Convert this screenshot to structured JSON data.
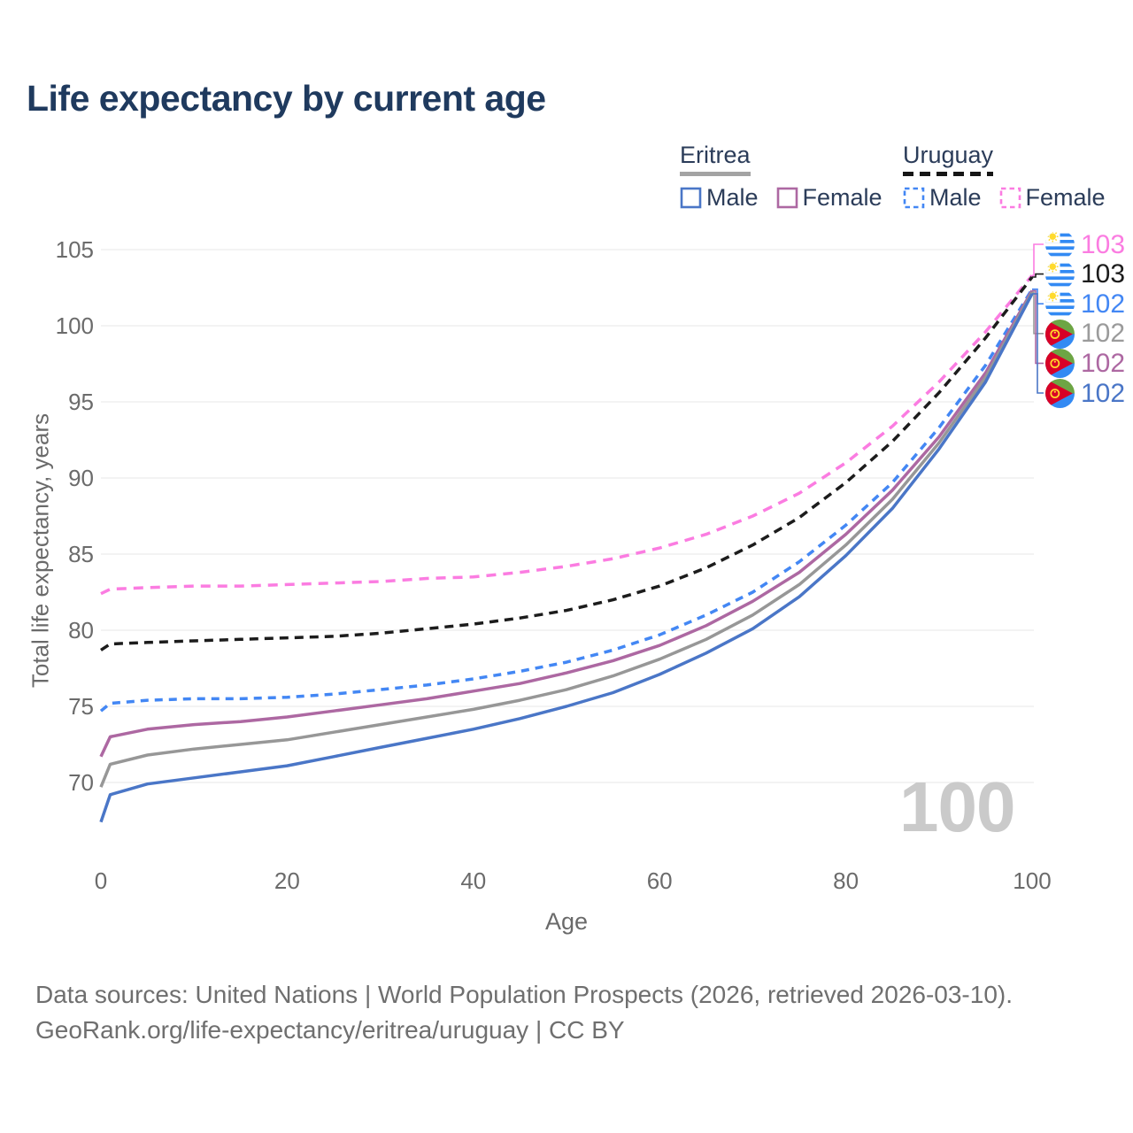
{
  "page": {
    "title": "Life expectancy by current age"
  },
  "legend": {
    "groups": [
      {
        "label": "Eritrea",
        "underline_style": "solid",
        "items": [
          {
            "label": "Male",
            "swatch_color": "#4a76c7",
            "swatch_style": "solid"
          },
          {
            "label": "Female",
            "swatch_color": "#ad68a2",
            "swatch_style": "solid"
          }
        ]
      },
      {
        "label": "Uruguay",
        "underline_style": "dashed",
        "items": [
          {
            "label": "Male",
            "swatch_color": "#4387f4",
            "swatch_style": "dashed"
          },
          {
            "label": "Female",
            "swatch_color": "#fb7ce1",
            "swatch_style": "dashed"
          }
        ]
      }
    ]
  },
  "chart_data": {
    "type": "line",
    "title": "Life expectancy by current age",
    "xlabel": "Age",
    "ylabel": "Total life expectancy, years",
    "xlim": [
      0,
      100
    ],
    "ylim": [
      70,
      105
    ],
    "xticks": [
      0,
      20,
      40,
      60,
      80,
      100
    ],
    "yticks": [
      70,
      75,
      80,
      85,
      90,
      95,
      100,
      105
    ],
    "grid": "horizontal",
    "watermark": "100",
    "x": [
      0,
      1,
      5,
      10,
      15,
      20,
      25,
      30,
      35,
      40,
      45,
      50,
      55,
      60,
      65,
      70,
      75,
      80,
      85,
      90,
      95,
      100
    ],
    "series": [
      {
        "id": "uruguay_female",
        "name": "Uruguay Female",
        "country": "Uruguay",
        "sex": "Female",
        "color": "#fb7ce1",
        "dash": "11 8",
        "values": [
          82.4,
          82.7,
          82.8,
          82.9,
          82.9,
          83.0,
          83.1,
          83.2,
          83.4,
          83.5,
          83.8,
          84.2,
          84.7,
          85.4,
          86.3,
          87.5,
          89.0,
          91.0,
          93.4,
          96.3,
          99.6,
          103.3
        ]
      },
      {
        "id": "uruguay_total",
        "name": "Uruguay",
        "country": "Uruguay",
        "sex": "Both",
        "color": "#1c1c1c",
        "dash": "10 7",
        "values": [
          78.7,
          79.1,
          79.2,
          79.3,
          79.4,
          79.5,
          79.6,
          79.8,
          80.1,
          80.4,
          80.8,
          81.3,
          82.0,
          82.9,
          84.1,
          85.6,
          87.4,
          89.7,
          92.4,
          95.6,
          99.2,
          103.2
        ]
      },
      {
        "id": "uruguay_male",
        "name": "Uruguay Male",
        "country": "Uruguay",
        "sex": "Male",
        "color": "#4387f4",
        "dash": "9 7",
        "values": [
          74.7,
          75.2,
          75.4,
          75.5,
          75.5,
          75.6,
          75.8,
          76.1,
          76.4,
          76.8,
          77.3,
          77.9,
          78.7,
          79.7,
          81.0,
          82.5,
          84.5,
          86.9,
          89.7,
          93.3,
          97.4,
          102.4
        ]
      },
      {
        "id": "eritrea_female",
        "name": "Eritrea Female",
        "country": "Eritrea",
        "sex": "Female",
        "color": "#ad68a2",
        "dash": null,
        "values": [
          71.7,
          73.0,
          73.5,
          73.8,
          74.0,
          74.3,
          74.7,
          75.1,
          75.5,
          76.0,
          76.5,
          77.2,
          78.0,
          79.0,
          80.3,
          81.9,
          83.8,
          86.3,
          89.2,
          92.7,
          96.9,
          102.3
        ]
      },
      {
        "id": "eritrea_total",
        "name": "Eritrea",
        "country": "Eritrea",
        "sex": "Both",
        "color": "#979797",
        "dash": null,
        "values": [
          69.7,
          71.2,
          71.8,
          72.2,
          72.5,
          72.8,
          73.3,
          73.8,
          74.3,
          74.8,
          75.4,
          76.1,
          77.0,
          78.1,
          79.4,
          81.0,
          83.0,
          85.6,
          88.6,
          92.3,
          96.6,
          102.2
        ]
      },
      {
        "id": "eritrea_male",
        "name": "Eritrea Male",
        "country": "Eritrea",
        "sex": "Male",
        "color": "#4a76c7",
        "dash": null,
        "values": [
          67.4,
          69.2,
          69.9,
          70.3,
          70.7,
          71.1,
          71.7,
          72.3,
          72.9,
          73.5,
          74.2,
          75.0,
          75.9,
          77.1,
          78.5,
          80.1,
          82.2,
          84.9,
          88.0,
          91.9,
          96.3,
          102.1
        ]
      }
    ],
    "end_labels": [
      {
        "series": "uruguay_female",
        "flag": "uruguay",
        "value": "103",
        "color": "#fb7ce1"
      },
      {
        "series": "uruguay_total",
        "flag": "uruguay",
        "value": "103",
        "color": "#1c1c1c"
      },
      {
        "series": "uruguay_male",
        "flag": "uruguay",
        "value": "102",
        "color": "#4387f4"
      },
      {
        "series": "eritrea_total",
        "flag": "eritrea",
        "value": "102",
        "color": "#9b9b9b"
      },
      {
        "series": "eritrea_female",
        "flag": "eritrea",
        "value": "102",
        "color": "#ad68a2"
      },
      {
        "series": "eritrea_male",
        "flag": "eritrea",
        "value": "102",
        "color": "#4a76c7"
      }
    ]
  },
  "footer": {
    "line1": "Data sources: United Nations | World Population Prospects (2026, retrieved 2026-03-10).",
    "line2": "GeoRank.org/life-expectancy/eritrea/uruguay | CC BY"
  }
}
